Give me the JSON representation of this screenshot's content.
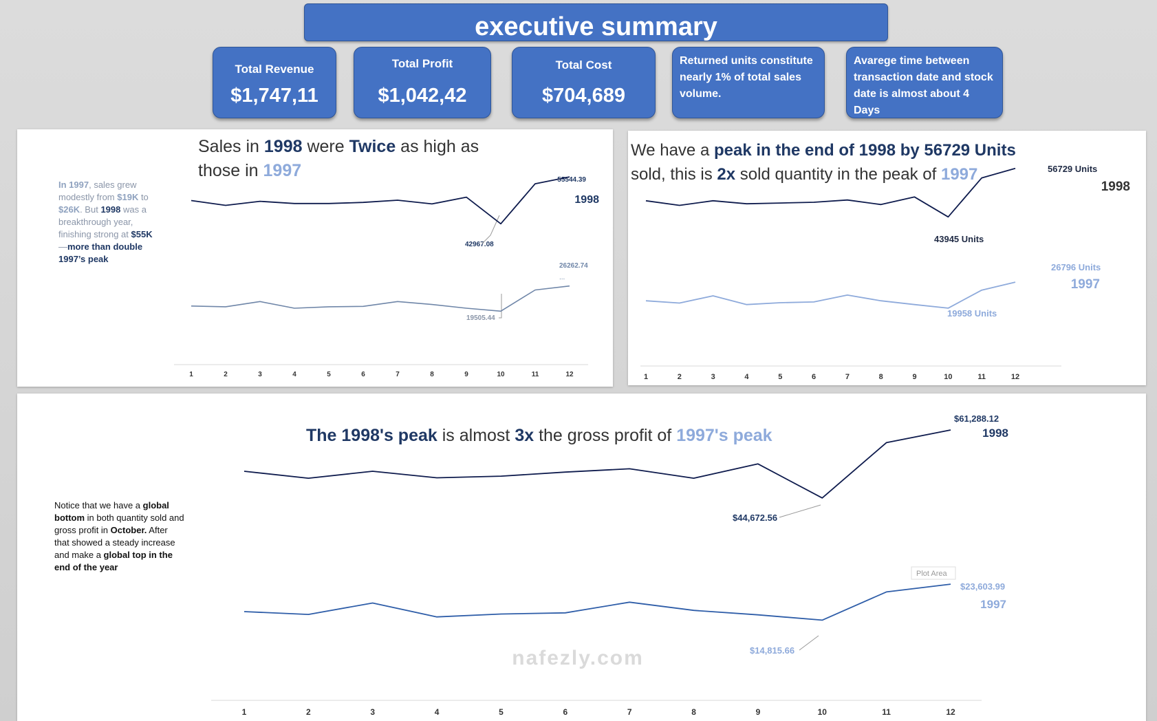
{
  "header": {
    "title": "executive summary"
  },
  "kpis": [
    {
      "label": "Total Revenue",
      "value": "$1,747,11"
    },
    {
      "label": "Total Profit",
      "value": "$1,042,42"
    },
    {
      "label": "Total Cost",
      "value": "$704,689"
    }
  ],
  "kpi_notes": {
    "returned": "Returned units constitute nearly 1% of total sales volume.",
    "avg_time": "Avarege time between transaction date and stock date is almost about  4 Days"
  },
  "sales_panel": {
    "headline": {
      "p1": "Sales in ",
      "y1998": "1998",
      "p2": " were ",
      "twice": "Twice",
      "p3": " as high as those in ",
      "y1997": "1997"
    },
    "note": {
      "a": "In 1997",
      "b": ", sales grew modestly from ",
      "c": "$19K",
      "d": " to ",
      "e": "$26K",
      "f": ". But ",
      "g": "1998",
      "h": " was a breakthrough year, finishing strong at ",
      "i": "$55K",
      "j": " —",
      "k": "more than double 1997’s peak"
    },
    "labels": {
      "peak_1998": "55544.39",
      "low_1998": "42967.08",
      "peak_1997": "26262.74",
      "low_1997": "19505.44",
      "series_1998": "1998",
      "ellipsis": "..."
    }
  },
  "units_panel": {
    "headline": {
      "p1": "We have a ",
      "b1": "peak in the end of 1998 by 56729 Units",
      "p2": " sold, this is ",
      "b2": "2x",
      "p3": " sold quantity in the peak of ",
      "y1997": "1997"
    },
    "labels": {
      "peak_1998": "56729 Units",
      "low_1998": "43945 Units",
      "peak_1997": "26796 Units",
      "low_1997": "19958 Units",
      "series_1998": "1998",
      "series_1997": "1997"
    }
  },
  "profit_panel": {
    "headline": {
      "b1": "The 1998's peak",
      "p1": " is almost ",
      "b2": "3x",
      "p2": " the gross profit of ",
      "b3": "1997's peak"
    },
    "note": {
      "a": "Notice that we have a ",
      "b": "global bottom",
      "c": " in both quantity sold and gross profit in ",
      "d": "October.",
      "e": " After that showed a steady increase and make a ",
      "f": "global top in the end of the year"
    },
    "labels": {
      "peak_1998": "$61,288.12",
      "low_1998": "$44,672.56",
      "peak_1997": "$23,603.99",
      "low_1997": "$14,815.66",
      "series_1998": "1998",
      "series_1997": "1997",
      "plot_area_tooltip": "Plot Area"
    }
  },
  "watermark": {
    "text": "nafezly.com"
  },
  "colors": {
    "accent": "#4472c4",
    "dark_series": "#0e1b4d",
    "light_series_sales": "#6f86a8",
    "light_series_units": "#8eaadb",
    "light_series_profit": "#2e5da8"
  },
  "chart_data": [
    {
      "type": "line",
      "title": "Sales in 1998 were Twice as high as those in 1997",
      "categories": [
        1,
        2,
        3,
        4,
        5,
        6,
        7,
        8,
        9,
        10,
        11,
        12
      ],
      "series": [
        {
          "name": "1998",
          "values": [
            49200,
            47900,
            49000,
            48400,
            48400,
            48700,
            49300,
            48300,
            50100,
            42967.08,
            53700,
            55544.39
          ]
        },
        {
          "name": "1997",
          "values": [
            20900,
            20700,
            22100,
            20300,
            20700,
            20800,
            22100,
            21300,
            20300,
            19505.44,
            25200,
            26262.74
          ]
        }
      ],
      "grid": false
    },
    {
      "type": "line",
      "title": "We have a peak in the end of 1998 by 56729 Units sold, this is 2x sold quantity in the peak of 1997",
      "categories": [
        1,
        2,
        3,
        4,
        5,
        6,
        7,
        8,
        9,
        10,
        11,
        12
      ],
      "series": [
        {
          "name": "1998",
          "values": [
            48200,
            47000,
            48200,
            47400,
            47600,
            47800,
            48400,
            47200,
            49200,
            43945,
            54200,
            56729
          ]
        },
        {
          "name": "1997",
          "values": [
            21900,
            21300,
            23200,
            20900,
            21400,
            21600,
            23400,
            21900,
            20900,
            19958,
            24700,
            26796
          ]
        }
      ],
      "grid": false
    },
    {
      "type": "line",
      "title": "The 1998's peak is almost 3x the gross profit of 1997's peak",
      "categories": [
        1,
        2,
        3,
        4,
        5,
        6,
        7,
        8,
        9,
        10,
        11,
        12
      ],
      "series": [
        {
          "name": "1998",
          "values": [
            51200,
            49500,
            51200,
            49600,
            50000,
            51000,
            51800,
            49500,
            53000,
            44672.56,
            58200,
            61288.12
          ]
        },
        {
          "name": "1997",
          "values": [
            16900,
            16200,
            19000,
            15600,
            16300,
            16600,
            19200,
            17200,
            16100,
            14815.66,
            21700,
            23603.99
          ]
        }
      ],
      "grid": false
    }
  ]
}
